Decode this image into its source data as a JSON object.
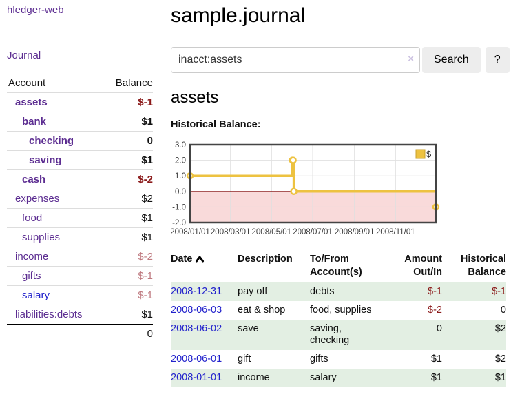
{
  "app": {
    "brand": "hledger-web",
    "nav_journal": "Journal"
  },
  "sidebar": {
    "headers": {
      "account": "Account",
      "balance": "Balance"
    },
    "accounts": [
      {
        "name": "assets",
        "balance": "$-1",
        "indent": 1,
        "bold": true,
        "tone": "neg",
        "link": "visited"
      },
      {
        "name": "bank",
        "balance": "$1",
        "indent": 2,
        "bold": true,
        "tone": "",
        "link": "visited"
      },
      {
        "name": "checking",
        "balance": "0",
        "indent": 3,
        "bold": true,
        "tone": "",
        "link": "visited"
      },
      {
        "name": "saving",
        "balance": "$1",
        "indent": 3,
        "bold": true,
        "tone": "",
        "link": "visited"
      },
      {
        "name": "cash",
        "balance": "$-2",
        "indent": 2,
        "bold": true,
        "tone": "neg",
        "link": "visited"
      },
      {
        "name": "expenses",
        "balance": "$2",
        "indent": 1,
        "bold": false,
        "tone": "",
        "link": "visited"
      },
      {
        "name": "food",
        "balance": "$1",
        "indent": 2,
        "bold": false,
        "tone": "",
        "link": "visited"
      },
      {
        "name": "supplies",
        "balance": "$1",
        "indent": 2,
        "bold": false,
        "tone": "",
        "link": "visited"
      },
      {
        "name": "income",
        "balance": "$-2",
        "indent": 1,
        "bold": false,
        "tone": "negsoft",
        "link": "visited"
      },
      {
        "name": "gifts",
        "balance": "$-1",
        "indent": 2,
        "bold": false,
        "tone": "negsoft",
        "link": "visited"
      },
      {
        "name": "salary",
        "balance": "$-1",
        "indent": 2,
        "bold": false,
        "tone": "negsoft",
        "link": "new"
      },
      {
        "name": "liabilities:debts",
        "balance": "$1",
        "indent": 1,
        "bold": false,
        "tone": "",
        "link": "visited"
      }
    ],
    "total": "0"
  },
  "main": {
    "title": "sample.journal",
    "search": {
      "value": "inacct:assets",
      "clear": "×",
      "button": "Search",
      "help": "?"
    },
    "account_heading": "assets",
    "chart_label": "Historical Balance:"
  },
  "chart_data": {
    "type": "line",
    "step": true,
    "title": "Historical Balance:",
    "xlabel": "",
    "ylabel": "",
    "legend": "$",
    "legend_position": "top-right",
    "grid": true,
    "ylim": [
      -2,
      3
    ],
    "y_ticks": [
      3.0,
      2.0,
      1.0,
      0.0,
      -1.0,
      -2.0
    ],
    "x_ticks": [
      "2008/01/01",
      "2008/03/01",
      "2008/05/01",
      "2008/07/01",
      "2008/09/01",
      "2008/11/01"
    ],
    "x_range": [
      "2008-01-01",
      "2008-12-31"
    ],
    "series": [
      {
        "name": "$",
        "color": "#EDC240",
        "points": [
          [
            "2008-01-01",
            1
          ],
          [
            "2008-06-01",
            2
          ],
          [
            "2008-06-02",
            2
          ],
          [
            "2008-06-03",
            0
          ],
          [
            "2008-12-31",
            -1
          ]
        ]
      }
    ],
    "negative_region_color": "#f9dada",
    "zero_line_color": "#8e1f1f"
  },
  "table": {
    "headers": {
      "date": "Date",
      "description": "Description",
      "tofrom": "To/From\nAccount(s)",
      "amount": "Amount\nOut/In",
      "balance": "Historical\nBalance"
    },
    "rows": [
      {
        "date": "2008-12-31",
        "description": "pay off",
        "accounts": "debts",
        "amount": "$-1",
        "amount_neg": true,
        "balance": "$-1",
        "balance_neg": true
      },
      {
        "date": "2008-06-03",
        "description": "eat & shop",
        "accounts": "food, supplies",
        "amount": "$-2",
        "amount_neg": true,
        "balance": "0",
        "balance_neg": false
      },
      {
        "date": "2008-06-02",
        "description": "save",
        "accounts": "saving,\nchecking",
        "amount": "0",
        "amount_neg": false,
        "balance": "$2",
        "balance_neg": false
      },
      {
        "date": "2008-06-01",
        "description": "gift",
        "accounts": "gifts",
        "amount": "$1",
        "amount_neg": false,
        "balance": "$2",
        "balance_neg": false
      },
      {
        "date": "2008-01-01",
        "description": "income",
        "accounts": "salary",
        "amount": "$1",
        "amount_neg": false,
        "balance": "$1",
        "balance_neg": false
      }
    ]
  },
  "colors": {
    "link_visited_purple": "#5c2d91",
    "link_blue": "#2222cc",
    "negative_strong": "#8b1a1a",
    "negative_muted": "#bf7a80",
    "row_stripe_green": "#e3efe3",
    "series_yellow": "#EDC240",
    "negative_region_pink": "#f9dada",
    "zero_line_red": "#8e1f1f",
    "chart_border_gray": "#444444",
    "button_gray": "#ededed"
  }
}
